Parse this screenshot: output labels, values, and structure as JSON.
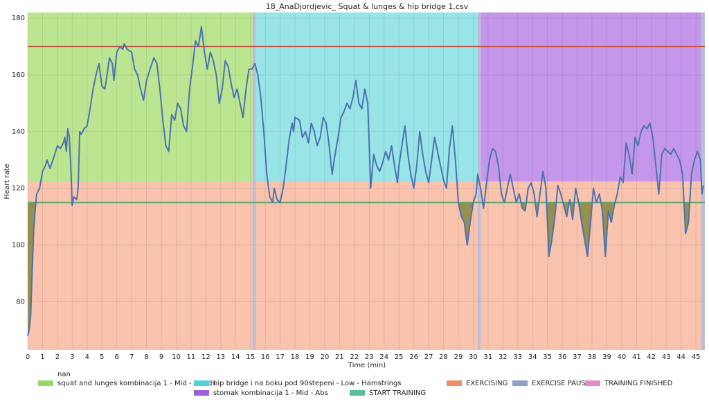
{
  "chart_data": {
    "type": "line",
    "title": "18_AnaDjordjevic_ Squat & lunges & hip bridge 1.csv",
    "xlabel": "Time (min)",
    "ylabel": "Heart rate",
    "xlim": [
      0,
      45.6
    ],
    "ylim": [
      63,
      182
    ],
    "xticks": [
      0,
      1,
      2,
      3,
      4,
      5,
      6,
      7,
      8,
      9,
      10,
      11,
      12,
      13,
      14,
      15,
      16,
      17,
      18,
      19,
      20,
      21,
      22,
      23,
      24,
      25,
      26,
      27,
      28,
      29,
      30,
      31,
      32,
      33,
      34,
      35,
      36,
      37,
      38,
      39,
      40,
      41,
      42,
      43,
      44,
      45
    ],
    "yticks": [
      80,
      100,
      120,
      140,
      160,
      180
    ],
    "grid": true,
    "color": "#4c72b0",
    "x": [
      0,
      0.1,
      0.2,
      0.3,
      0.4,
      0.5,
      0.6,
      0.8,
      1,
      1.2,
      1.3,
      1.5,
      1.7,
      2,
      2.2,
      2.4,
      2.5,
      2.6,
      2.7,
      2.8,
      2.9,
      3,
      3.1,
      3.3,
      3.4,
      3.5,
      3.6,
      3.8,
      4,
      4.2,
      4.4,
      4.6,
      4.8,
      5,
      5.2,
      5.4,
      5.5,
      5.7,
      5.8,
      6,
      6.2,
      6.4,
      6.5,
      6.7,
      7,
      7.2,
      7.4,
      7.6,
      7.8,
      8,
      8.3,
      8.5,
      8.7,
      8.9,
      9.1,
      9.3,
      9.5,
      9.7,
      9.9,
      10.1,
      10.3,
      10.5,
      10.7,
      10.9,
      11.1,
      11.3,
      11.5,
      11.7,
      11.9,
      12.1,
      12.3,
      12.5,
      12.7,
      12.9,
      13.1,
      13.3,
      13.5,
      13.7,
      13.9,
      14.1,
      14.3,
      14.5,
      14.7,
      14.9,
      15.1,
      15.3,
      15.5,
      15.7,
      15.9,
      16.1,
      16.3,
      16.5,
      16.6,
      16.8,
      17,
      17.2,
      17.4,
      17.6,
      17.8,
      17.9,
      18,
      18.3,
      18.5,
      18.7,
      18.9,
      19.1,
      19.3,
      19.5,
      19.7,
      19.9,
      20.1,
      20.3,
      20.5,
      20.7,
      20.9,
      21.1,
      21.3,
      21.5,
      21.7,
      21.9,
      22.1,
      22.3,
      22.5,
      22.7,
      22.9,
      23,
      23.1,
      23.3,
      23.5,
      23.7,
      23.9,
      24.1,
      24.3,
      24.5,
      24.7,
      24.9,
      25,
      25.2,
      25.4,
      25.6,
      25.8,
      26,
      26.2,
      26.4,
      26.6,
      26.8,
      27,
      27.2,
      27.4,
      27.6,
      27.8,
      28,
      28.2,
      28.4,
      28.6,
      28.8,
      29,
      29.2,
      29.4,
      29.6,
      29.8,
      30,
      30.2,
      30.3,
      30.5,
      30.7,
      30.9,
      31.1,
      31.3,
      31.5,
      31.7,
      31.9,
      32.1,
      32.3,
      32.5,
      32.7,
      32.9,
      33.1,
      33.3,
      33.5,
      33.7,
      33.9,
      34.1,
      34.3,
      34.5,
      34.7,
      34.9,
      35.1,
      35.3,
      35.5,
      35.7,
      35.9,
      36.1,
      36.3,
      36.5,
      36.7,
      36.9,
      37.1,
      37.3,
      37.5,
      37.7,
      37.9,
      38.1,
      38.3,
      38.5,
      38.7,
      38.9,
      39.1,
      39.3,
      39.5,
      39.7,
      39.9,
      40.1,
      40.3,
      40.5,
      40.7,
      40.9,
      41.1,
      41.3,
      41.5,
      41.7,
      41.9,
      42.1,
      42.3,
      42.5,
      42.7,
      42.9,
      43.1,
      43.3,
      43.5,
      43.7,
      43.9,
      44.1,
      44.3,
      44.5,
      44.7,
      44.9,
      45.1,
      45.3,
      45.4,
      45.5
    ],
    "values": [
      68,
      70,
      75,
      90,
      105,
      112,
      118,
      120,
      126,
      128,
      130,
      127,
      130,
      135,
      134,
      136,
      138,
      133,
      141,
      138,
      128,
      114,
      117,
      116,
      120,
      140,
      139,
      141,
      142,
      148,
      155,
      160,
      164,
      156,
      155,
      162,
      166,
      164,
      158,
      168,
      170,
      169,
      171,
      169,
      168,
      162,
      160,
      155,
      151,
      158,
      163,
      166,
      164,
      155,
      144,
      135,
      133,
      146,
      144,
      150,
      148,
      142,
      140,
      155,
      163,
      172,
      170,
      177,
      168,
      162,
      168,
      165,
      160,
      150,
      155,
      165,
      163,
      157,
      152,
      155,
      150,
      145,
      155,
      162,
      162,
      164,
      160,
      152,
      140,
      125,
      117,
      115,
      120,
      116,
      115,
      120,
      128,
      137,
      143,
      140,
      145,
      144,
      138,
      140,
      136,
      143,
      140,
      135,
      138,
      145,
      143,
      135,
      125,
      132,
      138,
      145,
      147,
      150,
      148,
      152,
      158,
      150,
      148,
      155,
      150,
      135,
      120,
      132,
      128,
      126,
      129,
      133,
      130,
      135,
      128,
      122,
      128,
      135,
      142,
      132,
      125,
      120,
      128,
      140,
      132,
      126,
      122,
      130,
      138,
      133,
      128,
      123,
      120,
      134,
      142,
      130,
      115,
      110,
      108,
      100,
      108,
      115,
      118,
      125,
      120,
      113,
      122,
      130,
      134,
      133,
      128,
      118,
      115,
      120,
      125,
      120,
      115,
      118,
      113,
      112,
      120,
      122,
      118,
      110,
      118,
      126,
      120,
      96,
      102,
      110,
      121,
      118,
      114,
      110,
      116,
      109,
      120,
      115,
      108,
      102,
      96,
      108,
      120,
      115,
      118,
      112,
      96,
      112,
      108,
      114,
      118,
      124,
      122,
      136,
      132,
      125,
      138,
      135,
      140,
      142,
      141,
      143,
      138,
      128,
      118,
      132,
      134,
      133,
      132,
      134,
      132,
      130,
      125,
      104,
      108,
      125,
      130,
      133,
      130,
      118,
      121
    ],
    "hlines": [
      {
        "value": 170,
        "color": "#c44e3f"
      },
      {
        "value": 115,
        "color": "#55a868"
      }
    ],
    "fill_color": "#8c8a45",
    "bands": [
      {
        "color": "#f9c3ad",
        "x": [
          0,
          45.6
        ],
        "y": [
          63,
          122.5
        ]
      },
      {
        "color": "#bce592",
        "x": [
          0,
          15.15
        ],
        "y": [
          122.5,
          182
        ]
      },
      {
        "color": "#98e4e7",
        "x": [
          15.35,
          30.3
        ],
        "y": [
          122.5,
          182
        ]
      },
      {
        "color": "#c497ea",
        "x": [
          30.5,
          45.6
        ],
        "y": [
          122.5,
          182
        ]
      },
      {
        "color": "#b8bedc",
        "x": [
          15.15,
          15.35
        ],
        "y": [
          63,
          182
        ]
      },
      {
        "color": "#b8bedc",
        "x": [
          30.3,
          30.5
        ],
        "y": [
          63,
          182
        ]
      },
      {
        "color": "#b8bedc",
        "x": [
          45.35,
          45.6
        ],
        "y": [
          63,
          182
        ]
      }
    ],
    "legend": [
      {
        "name": "nan",
        "color": null
      },
      {
        "name": "squat and lunges kombinacija 1 - Mid -  Quads",
        "color": "#97d966"
      },
      {
        "name": "hip bridge i na boku pod 90stepeni - Low -  Hamstrings",
        "color": "#4fd2dc"
      },
      {
        "name": "stomak kombinacija 1 - Mid -  Abs",
        "color": "#9b63d9"
      },
      {
        "name": "START TRAINING",
        "color": "#5cbf9e"
      },
      {
        "name": "EXERCISING",
        "color": "#f08c66"
      },
      {
        "name": "EXERCISE PAUSE",
        "color": "#8e9fcc"
      },
      {
        "name": "TRAINING FINISHED",
        "color": "#e68ac3"
      }
    ]
  }
}
